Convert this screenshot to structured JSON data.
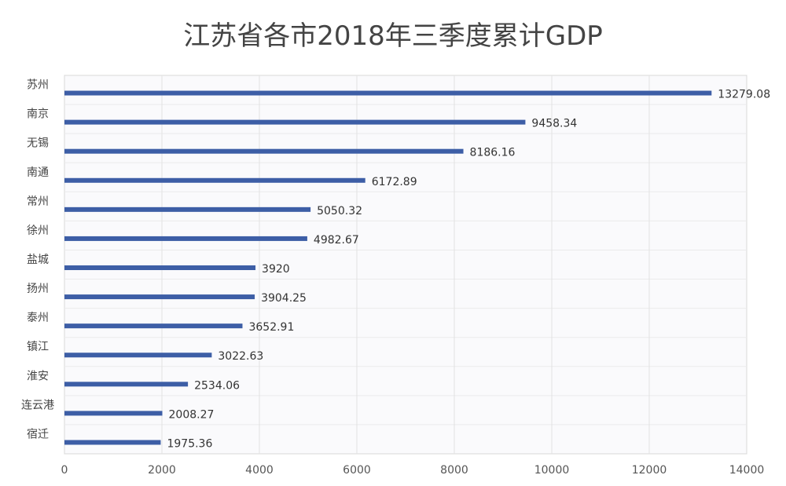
{
  "chart_data": {
    "type": "bar",
    "orientation": "horizontal",
    "title": "江苏省各市2018年三季度累计GDP",
    "categories": [
      "苏州",
      "南京",
      "无锡",
      "南通",
      "常州",
      "徐州",
      "盐城",
      "扬州",
      "泰州",
      "镇江",
      "淮安",
      "连云港",
      "宿迁"
    ],
    "values": [
      13279.08,
      9458.34,
      8186.16,
      6172.89,
      5050.32,
      4982.67,
      3920,
      3904.25,
      3652.91,
      3022.63,
      2534.06,
      2008.27,
      1975.36
    ],
    "data_labels": [
      "13279.08",
      "9458.34",
      "8186.16",
      "6172.89",
      "5050.32",
      "4982.67",
      "3920",
      "3904.25",
      "3652.91",
      "3022.63",
      "2534.06",
      "2008.27",
      "1975.36"
    ],
    "xlim": [
      0,
      14000
    ],
    "xticks": [
      "0",
      "2000",
      "4000",
      "6000",
      "8000",
      "10000",
      "12000",
      "14000"
    ],
    "xlabel": "",
    "ylabel": "",
    "grid": true,
    "legend": "none",
    "bar_color": "#3d5ea6"
  }
}
